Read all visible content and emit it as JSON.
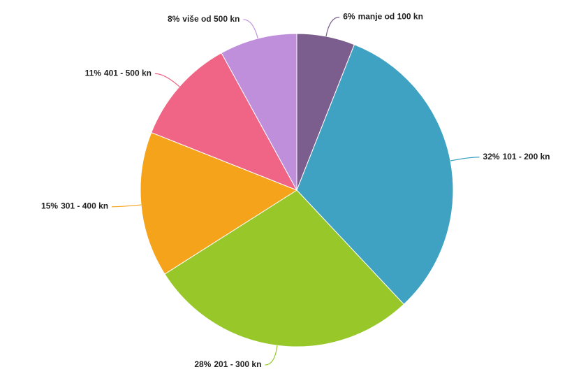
{
  "chart_data": {
    "type": "pie",
    "categories": [
      "manje od 100 kn",
      "101 - 200 kn",
      "201 - 300 kn",
      "301 - 400 kn",
      "401 - 500 kn",
      "više od 500 kn"
    ],
    "values": [
      6,
      32,
      28,
      15,
      11,
      8
    ],
    "value_labels": [
      "6%",
      "32%",
      "28%",
      "15%",
      "11%",
      "8%"
    ],
    "colors": [
      "#7b5e8e",
      "#3fa2c2",
      "#97c729",
      "#f5a31a",
      "#f06585",
      "#bf8fdc"
    ]
  }
}
